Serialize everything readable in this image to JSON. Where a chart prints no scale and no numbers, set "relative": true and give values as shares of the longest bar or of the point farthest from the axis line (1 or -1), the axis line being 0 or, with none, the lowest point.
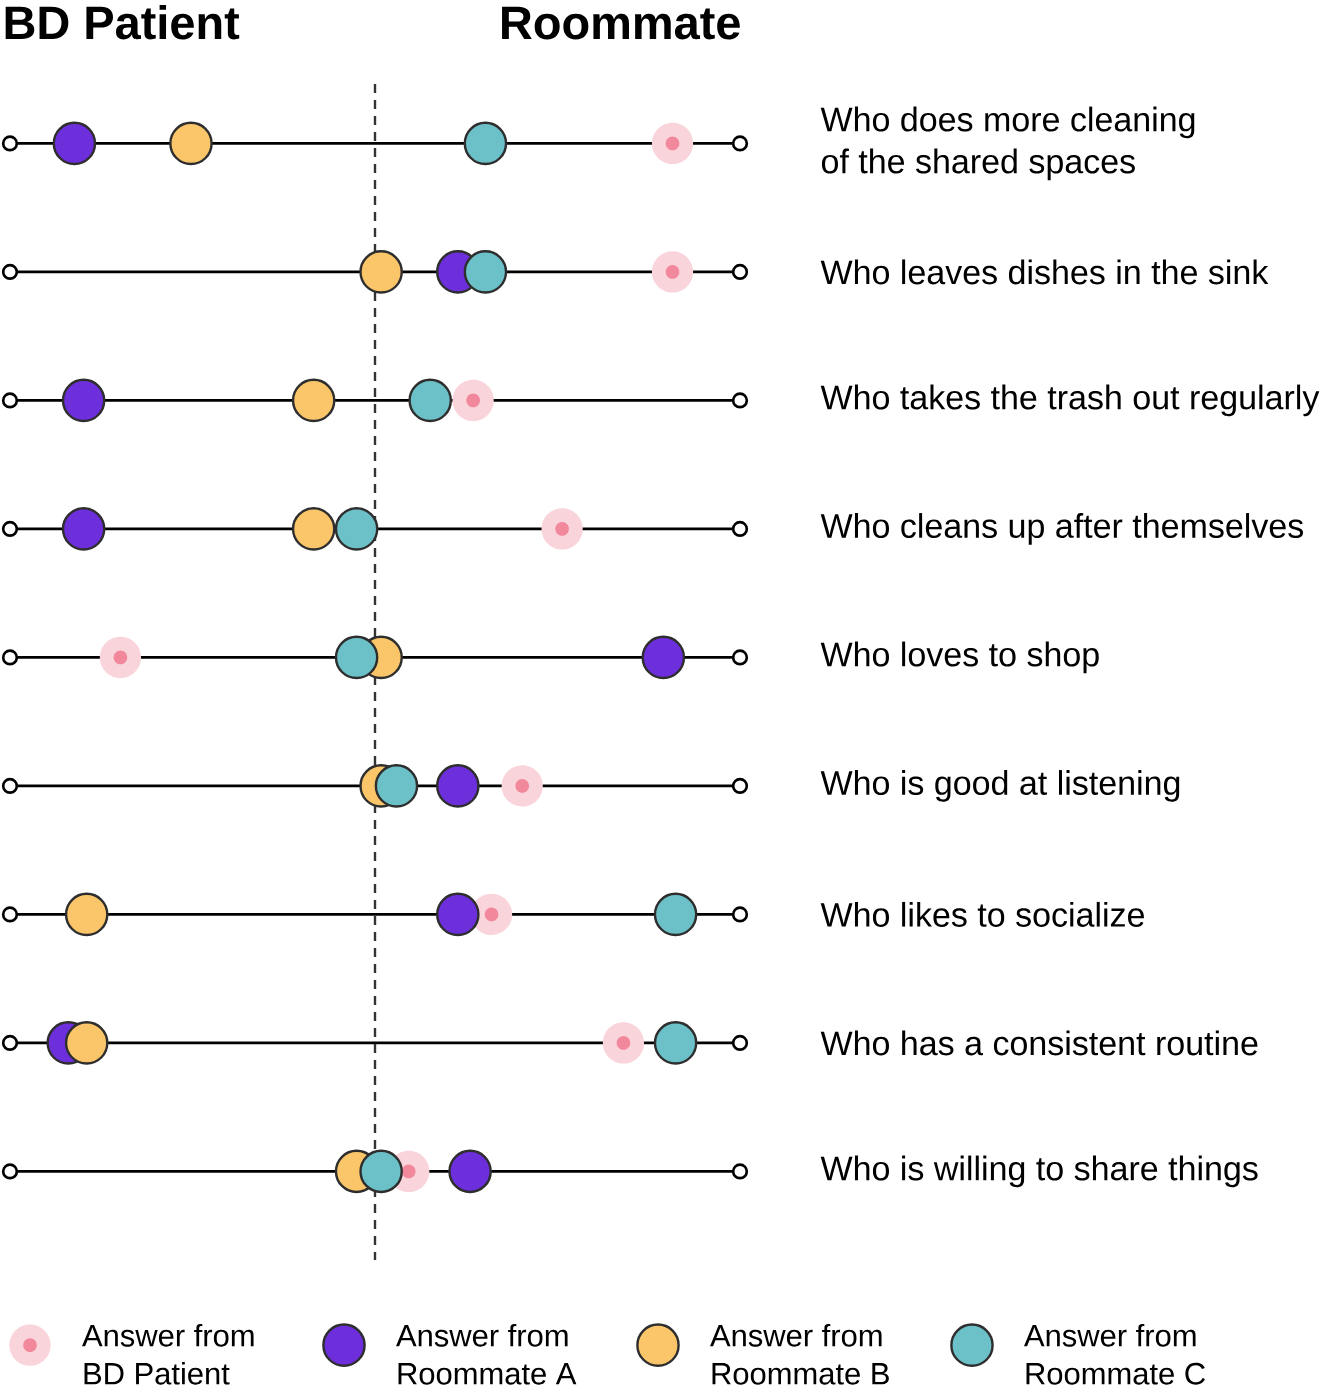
{
  "chart_data": {
    "type": "scatter",
    "orientation": "horizontal",
    "relative": true,
    "categories": [
      "Who does more cleaning of the shared spaces",
      "Who leaves dishes in the sink",
      "Who takes the trash out regularly",
      "Who cleans up after themselves",
      "Who loves to shop",
      "Who is good at listening",
      "Who likes to socialize",
      "Who has a consistent routine",
      "Who is willing to share things"
    ],
    "series": [
      {
        "name": "Answer from BD Patient",
        "color": "#fad4db",
        "values": [
          0.97,
          0.97,
          0.32,
          0.61,
          -0.83,
          0.48,
          0.38,
          0.81,
          0.11
        ]
      },
      {
        "name": "Answer from Roommate A",
        "color": "#6d2edb",
        "values": [
          -0.98,
          0.27,
          -0.95,
          -0.95,
          0.94,
          0.27,
          0.27,
          -1.0,
          0.31
        ]
      },
      {
        "name": "Answer from Roommate B",
        "color": "#fbc66a",
        "values": [
          -0.6,
          0.02,
          -0.2,
          -0.2,
          0.02,
          0.02,
          -0.94,
          -0.94,
          -0.06
        ]
      },
      {
        "name": "Answer from Roommate C",
        "color": "#6cc0c8",
        "values": [
          0.36,
          0.36,
          0.18,
          -0.06,
          -0.06,
          0.07,
          0.98,
          0.98,
          0.02
        ]
      }
    ],
    "ref_lines": [
      {
        "axis": "x",
        "value": 0,
        "color": "#333333",
        "line_style": "dashed"
      }
    ],
    "annotations": [
      "BD Patient",
      "Roommate"
    ],
    "grid": "y",
    "legend": "bottom",
    "marker": "circle"
  }
}
